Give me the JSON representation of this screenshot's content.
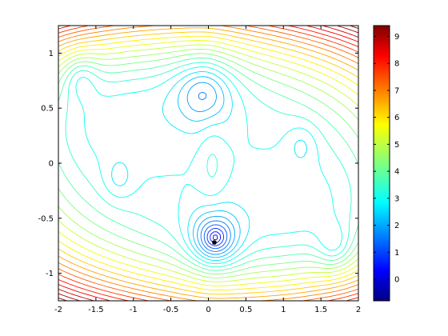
{
  "chart_data": {
    "type": "contour",
    "title": "",
    "xlabel": "",
    "ylabel": "",
    "xlim": [
      -2,
      2
    ],
    "ylim": [
      -1.25,
      1.25
    ],
    "x_ticks": [
      "-2",
      "-1.5",
      "-1",
      "-0.5",
      "0",
      "0.5",
      "1",
      "1.5",
      "2"
    ],
    "y_ticks": [
      "-1",
      "-0.5",
      "0",
      "0.5",
      "1"
    ],
    "colorbar": {
      "colormap": "jet",
      "range": [
        -0.8,
        9.4
      ],
      "ticks": [
        "0",
        "1",
        "2",
        "3",
        "4",
        "5",
        "6",
        "7",
        "8",
        "9"
      ]
    },
    "marker": {
      "x": 0.08,
      "y": -0.72
    },
    "contour_levels": 26,
    "grid": false
  }
}
